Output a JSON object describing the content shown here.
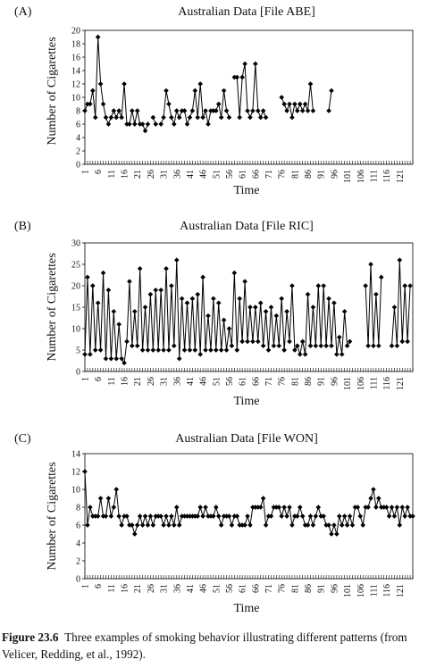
{
  "chart_data": [
    {
      "id": "a",
      "type": "line",
      "panel_label": "(A)",
      "title": "Australian Data [File ABE]",
      "xlabel": "Time",
      "ylabel": "Number of Cigarettes",
      "ylim": [
        0,
        20
      ],
      "yticks": [
        0,
        2,
        4,
        6,
        8,
        10,
        12,
        14,
        16,
        18,
        20
      ],
      "xlim": [
        1,
        126
      ],
      "xticks": [
        1,
        6,
        11,
        16,
        21,
        26,
        31,
        36,
        41,
        46,
        51,
        56,
        61,
        66,
        71,
        76,
        81,
        86,
        91,
        96,
        101,
        106,
        111,
        116,
        121
      ],
      "values": [
        8,
        9,
        9,
        11,
        7,
        19,
        12,
        9,
        7,
        6,
        7,
        8,
        7,
        8,
        7,
        12,
        6,
        6,
        8,
        6,
        8,
        6,
        6,
        5,
        6,
        null,
        7,
        6,
        null,
        6,
        7,
        11,
        9,
        7,
        6,
        8,
        7,
        8,
        8,
        6,
        7,
        8,
        11,
        7,
        12,
        7,
        8,
        6,
        8,
        8,
        8,
        9,
        7,
        11,
        8,
        7,
        null,
        13,
        13,
        7,
        13,
        15,
        8,
        7,
        8,
        15,
        8,
        7,
        8,
        7,
        null,
        null,
        null,
        null,
        null,
        10,
        9,
        8,
        9,
        7,
        9,
        8,
        9,
        8,
        9,
        8,
        12,
        8,
        null,
        null,
        null,
        null,
        null,
        8,
        11
      ],
      "color": "#000000",
      "grid": false,
      "legend": "none"
    },
    {
      "id": "b",
      "type": "line",
      "panel_label": "(B)",
      "title": "Australian Data [File RIC]",
      "xlabel": "Time",
      "ylabel": "Number of Cigarettes",
      "ylim": [
        0,
        30
      ],
      "yticks": [
        0,
        5,
        10,
        15,
        20,
        25,
        30
      ],
      "xlim": [
        1,
        126
      ],
      "xticks": [
        1,
        6,
        11,
        16,
        21,
        26,
        31,
        36,
        41,
        46,
        51,
        56,
        61,
        66,
        71,
        76,
        81,
        86,
        91,
        96,
        101,
        106,
        111,
        116,
        121
      ],
      "values": [
        4,
        22,
        4,
        20,
        5,
        16,
        5,
        23,
        3,
        19,
        3,
        14,
        3,
        11,
        3,
        2,
        7,
        21,
        6,
        14,
        6,
        24,
        5,
        15,
        5,
        18,
        5,
        19,
        5,
        19,
        5,
        24,
        5,
        20,
        6,
        26,
        3,
        17,
        5,
        16,
        5,
        17,
        5,
        18,
        4,
        22,
        5,
        13,
        5,
        17,
        5,
        16,
        5,
        12,
        5,
        10,
        6,
        23,
        5,
        17,
        7,
        21,
        7,
        15,
        7,
        15,
        7,
        16,
        6,
        14,
        5,
        15,
        6,
        13,
        6,
        17,
        5,
        14,
        7,
        20,
        5,
        6,
        4,
        7,
        4,
        18,
        6,
        15,
        6,
        20,
        6,
        20,
        6,
        17,
        6,
        16,
        4,
        8,
        4,
        14,
        6,
        7,
        null,
        null,
        null,
        null,
        null,
        20,
        6,
        25,
        6,
        18,
        6,
        22,
        null,
        null,
        null,
        6,
        15,
        6,
        26,
        7,
        20,
        7,
        20
      ],
      "color": "#000000",
      "grid": false,
      "legend": "none"
    },
    {
      "id": "c",
      "type": "line",
      "panel_label": "(C)",
      "title": "Australian Data [File WON]",
      "xlabel": "Time",
      "ylabel": "Number of Cigarettes",
      "ylim": [
        0,
        14
      ],
      "yticks": [
        0,
        2,
        4,
        6,
        8,
        10,
        12,
        14
      ],
      "xlim": [
        1,
        126
      ],
      "xticks": [
        1,
        6,
        11,
        16,
        21,
        26,
        31,
        36,
        41,
        46,
        51,
        56,
        61,
        66,
        71,
        76,
        81,
        86,
        91,
        96,
        101,
        106,
        111,
        116,
        121
      ],
      "values": [
        12,
        6,
        8,
        7,
        7,
        7,
        9,
        7,
        7,
        9,
        7,
        8,
        10,
        7,
        6,
        7,
        7,
        6,
        6,
        5,
        6,
        7,
        6,
        7,
        6,
        7,
        6,
        7,
        7,
        7,
        6,
        7,
        6,
        7,
        6,
        8,
        6,
        7,
        7,
        7,
        7,
        7,
        7,
        7,
        8,
        7,
        8,
        7,
        7,
        7,
        8,
        7,
        6,
        7,
        7,
        7,
        6,
        7,
        7,
        6,
        6,
        6,
        7,
        6,
        8,
        8,
        8,
        8,
        9,
        6,
        7,
        7,
        8,
        8,
        8,
        7,
        8,
        7,
        8,
        6,
        7,
        7,
        8,
        7,
        6,
        6,
        7,
        6,
        7,
        8,
        7,
        7,
        6,
        6,
        5,
        6,
        5,
        7,
        6,
        7,
        6,
        7,
        6,
        8,
        8,
        7,
        6,
        8,
        8,
        9,
        10,
        8,
        9,
        8,
        8,
        8,
        7,
        8,
        7,
        8,
        6,
        8,
        7,
        8,
        7,
        7
      ],
      "color": "#000000",
      "grid": false,
      "legend": "none"
    }
  ],
  "caption": {
    "label": "Figure 23.6",
    "text": "Three examples of smoking behavior illustrating different patterns (from Velicer, Redding, et al., 1992)."
  }
}
